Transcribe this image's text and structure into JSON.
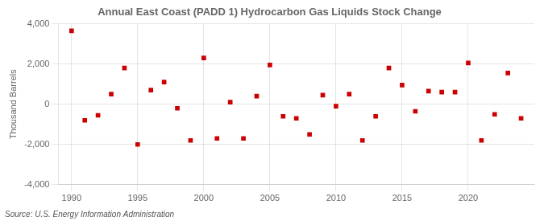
{
  "chart_data": {
    "type": "scatter",
    "title": "Annual East Coast (PADD 1) Hydrocarbon Gas Liquids Stock Change",
    "ylabel": "Thousand Barrels",
    "annotation": "Source: U.S. Energy Information Administration",
    "x": [
      1990,
      1991,
      1992,
      1993,
      1994,
      1995,
      1996,
      1997,
      1998,
      1999,
      2000,
      2001,
      2002,
      2003,
      2004,
      2005,
      2006,
      2007,
      2008,
      2009,
      2010,
      2011,
      2012,
      2013,
      2014,
      2015,
      2016,
      2017,
      2018,
      2019,
      2020,
      2021,
      2022,
      2023,
      2024
    ],
    "values": [
      3650,
      -800,
      -550,
      500,
      1800,
      -2000,
      700,
      1100,
      -200,
      -1800,
      2300,
      -1700,
      100,
      -1700,
      400,
      1950,
      -600,
      -700,
      -1500,
      450,
      -100,
      500,
      -1800,
      -600,
      1800,
      950,
      -350,
      650,
      600,
      600,
      2050,
      -1800,
      -500,
      1550,
      -700
    ],
    "color": "#cc0000",
    "marker": "square",
    "xlim": [
      1989,
      2025
    ],
    "xticks": [
      1990,
      1995,
      2000,
      2005,
      2010,
      2015,
      2020
    ],
    "ylim": [
      -4000,
      4000
    ],
    "yticks": [
      {
        "value": -4000,
        "label": "-4,000"
      },
      {
        "value": -2000,
        "label": "-2,000"
      },
      0,
      {
        "value": 2000,
        "label": "2,000"
      },
      {
        "value": 4000,
        "label": "4,000"
      }
    ],
    "grid": true
  }
}
